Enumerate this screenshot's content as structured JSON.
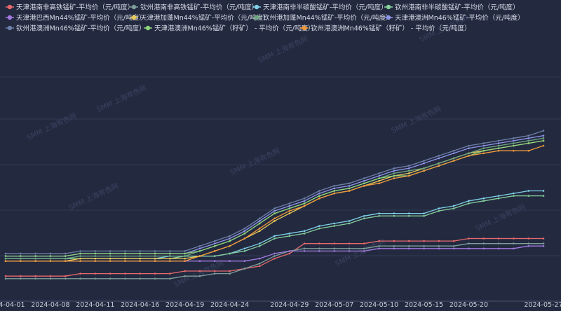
{
  "watermark": "SMM 上海有色网",
  "chart_data": {
    "type": "line",
    "x": [
      "2024-04-01",
      "2024-04-02",
      "2024-04-03",
      "2024-04-08",
      "2024-04-09",
      "2024-04-10",
      "2024-04-11",
      "2024-04-12",
      "2024-04-15",
      "2024-04-16",
      "2024-04-17",
      "2024-04-18",
      "2024-04-19",
      "2024-04-22",
      "2024-04-23",
      "2024-04-24",
      "2024-04-25",
      "2024-04-26",
      "2024-04-28",
      "2024-04-29",
      "2024-04-30",
      "2024-05-06",
      "2024-05-07",
      "2024-05-08",
      "2024-05-09",
      "2024-05-10",
      "2024-05-13",
      "2024-05-14",
      "2024-05-15",
      "2024-05-16",
      "2024-05-17",
      "2024-05-20",
      "2024-05-21",
      "2024-05-22",
      "2024-05-23",
      "2024-05-24",
      "2024-05-27"
    ],
    "x_ticks": [
      "2024-04-01",
      "2024-04-08",
      "2024-04-11",
      "2024-04-16",
      "2024-04-19",
      "2024-04-24",
      "2024-04-29",
      "2024-05-07",
      "2024-05-10",
      "2024-05-15",
      "2024-05-20",
      "2024-05-27"
    ],
    "legend_position": "top",
    "grid": true,
    "ylim": [
      0,
      100
    ],
    "series": [
      {
        "name": "天津港南非高铁锰矿-平均价（元/吨度）",
        "color": "#e8696b",
        "values": [
          10,
          10,
          10,
          10,
          10,
          11,
          11,
          11,
          11,
          11,
          11,
          11,
          12,
          12,
          12,
          12,
          13,
          14,
          17,
          19,
          23,
          23,
          23,
          23,
          23,
          24,
          24,
          24,
          24,
          24,
          24,
          25,
          25,
          25,
          25,
          25,
          25
        ]
      },
      {
        "name": "钦州港南非高铁锰矿-平均价（元/吨度）",
        "color": "#7f9e9a",
        "values": [
          9,
          9,
          9,
          9,
          9,
          9,
          9,
          9,
          9,
          9,
          9,
          9,
          10,
          10,
          11,
          11,
          13,
          15,
          18,
          20,
          21,
          21,
          21,
          21,
          21,
          22,
          22,
          22,
          22,
          22,
          22,
          23,
          23,
          23,
          23,
          23,
          23
        ]
      },
      {
        "name": "天津港南非半碳酸锰矿-平均价（元/吨度）",
        "color": "#7fd1e6",
        "values": [
          17,
          17,
          17,
          17,
          17,
          17,
          17,
          17,
          17,
          17,
          17,
          18,
          18,
          18,
          18,
          19,
          21,
          23,
          26,
          27,
          28,
          30,
          31,
          32,
          34,
          35,
          35,
          35,
          35,
          37,
          38,
          40,
          41,
          42,
          43,
          44,
          44
        ]
      },
      {
        "name": "钦州港南非半碳酸锰矿-平均价（元/吨度）",
        "color": "#86cf9a",
        "values": [
          17,
          17,
          17,
          17,
          17,
          17,
          17,
          17,
          17,
          17,
          17,
          17,
          18,
          18,
          18,
          19,
          20,
          22,
          25,
          26,
          27,
          29,
          30,
          31,
          33,
          34,
          34,
          34,
          34,
          36,
          37,
          39,
          40,
          41,
          42,
          42,
          42
        ]
      },
      {
        "name": "天津港巴西Mn44%锰矿-平均价（元/吨度）",
        "color": "#a37ae0",
        "values": [
          16,
          16,
          16,
          16,
          16,
          16,
          16,
          16,
          16,
          16,
          16,
          16,
          16,
          16,
          16,
          16,
          16,
          17,
          19,
          20,
          20,
          20,
          20,
          20,
          20,
          21,
          21,
          21,
          21,
          21,
          21,
          21,
          21,
          21,
          21,
          22,
          22
        ]
      },
      {
        "name": "天津港加蓬Mn44%锰矿-平均价（元/吨度）",
        "color": "#e9c957",
        "values": [
          16,
          16,
          16,
          16,
          16,
          17,
          17,
          17,
          17,
          17,
          17,
          17,
          17,
          18,
          20,
          22,
          25,
          28,
          32,
          35,
          38,
          41,
          43,
          44,
          46,
          48,
          50,
          51,
          53,
          55,
          57,
          59,
          60,
          61,
          62,
          63,
          64
        ]
      },
      {
        "name": "钦州港加蓬Mn44%锰矿-平均价（元/吨度）",
        "color": "#6ea77f",
        "values": [
          17,
          17,
          17,
          17,
          17,
          18,
          18,
          18,
          18,
          18,
          18,
          18,
          18,
          20,
          22,
          24,
          27,
          31,
          35,
          37,
          39,
          42,
          44,
          45,
          47,
          49,
          51,
          52,
          53,
          55,
          57,
          59,
          61,
          62,
          63,
          64,
          65
        ]
      },
      {
        "name": "天津港澳洲Mn46%锰矿-平均价（元/吨度）",
        "color": "#8f95e8",
        "values": [
          18,
          18,
          18,
          18,
          18,
          19,
          19,
          19,
          19,
          19,
          19,
          19,
          19,
          21,
          23,
          25,
          28,
          32,
          36,
          38,
          40,
          43,
          45,
          46,
          48,
          50,
          52,
          53,
          55,
          57,
          59,
          61,
          62,
          63,
          64,
          65,
          66
        ]
      },
      {
        "name": "钦州港澳洲Mn46%锰矿-平均价（元/吨度）",
        "color": "#6d7fa8",
        "values": [
          19,
          19,
          19,
          19,
          19,
          20,
          20,
          20,
          20,
          20,
          20,
          20,
          20,
          22,
          24,
          26,
          29,
          33,
          37,
          39,
          41,
          44,
          46,
          47,
          49,
          51,
          53,
          54,
          56,
          58,
          60,
          62,
          63,
          64,
          65,
          66,
          68
        ]
      },
      {
        "name": "天津港澳洲Mn46%锰矿（籽矿） - 平均价（元/吨度）",
        "color": "#8ed37a",
        "values": [
          18,
          18,
          18,
          18,
          18,
          19,
          19,
          19,
          19,
          19,
          19,
          19,
          19,
          20,
          22,
          24,
          27,
          31,
          35,
          37,
          39,
          42,
          44,
          45,
          47,
          49,
          50,
          50,
          52,
          54,
          56,
          58,
          60,
          61,
          62,
          63,
          64
        ]
      },
      {
        "name": "钦州港澳洲Mn46%锰矿（籽矿） - 平均价（元/吨度）",
        "color": "#f0993a",
        "values": [
          16,
          16,
          16,
          16,
          16,
          16,
          16,
          16,
          16,
          16,
          16,
          16,
          16,
          18,
          20,
          22,
          25,
          29,
          33,
          36,
          38,
          41,
          43,
          44,
          46,
          47,
          49,
          50,
          52,
          54,
          56,
          58,
          59,
          60,
          60,
          60,
          62
        ]
      }
    ]
  }
}
